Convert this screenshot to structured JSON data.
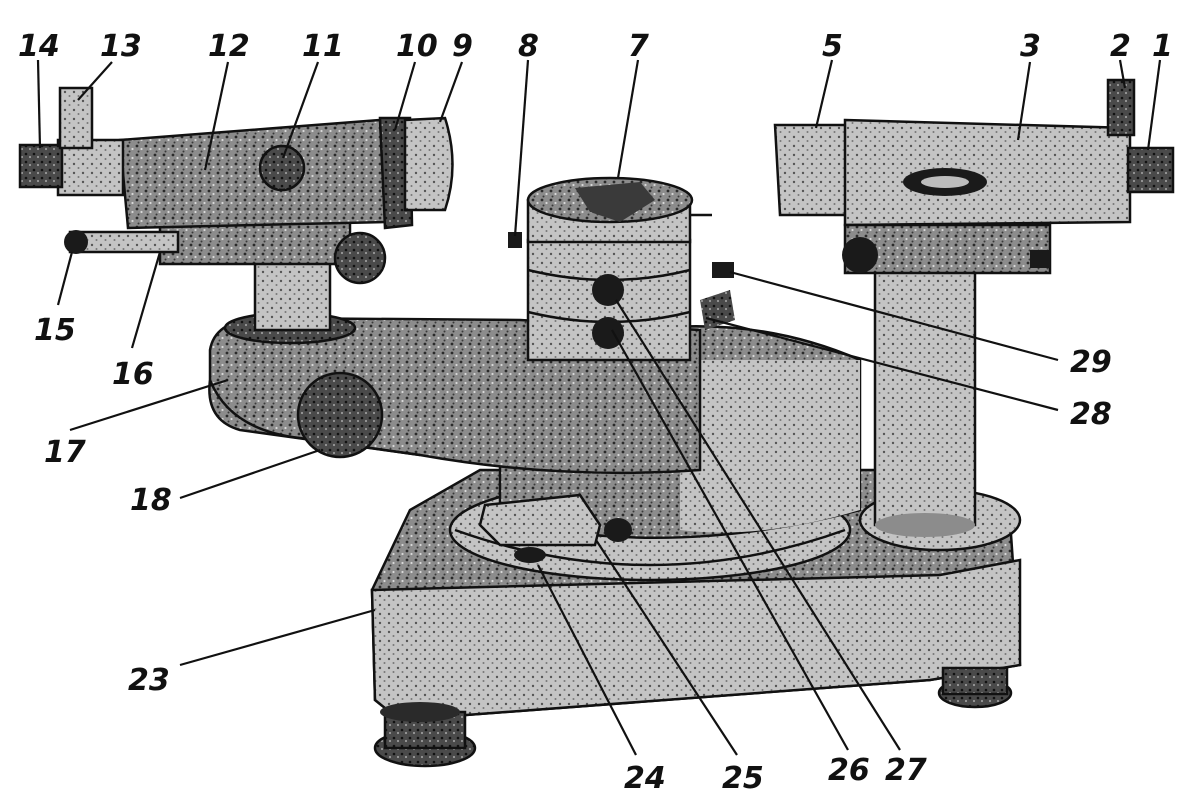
{
  "diagram": {
    "callouts": [
      {
        "id": "c14",
        "number": "14"
      },
      {
        "id": "c13",
        "number": "13"
      },
      {
        "id": "c12",
        "number": "12"
      },
      {
        "id": "c11",
        "number": "11"
      },
      {
        "id": "c10",
        "number": "10"
      },
      {
        "id": "c9",
        "number": "9"
      },
      {
        "id": "c8",
        "number": "8"
      },
      {
        "id": "c7",
        "number": "7"
      },
      {
        "id": "c5",
        "number": "5"
      },
      {
        "id": "c3",
        "number": "3"
      },
      {
        "id": "c2",
        "number": "2"
      },
      {
        "id": "c1",
        "number": "1"
      },
      {
        "id": "c15",
        "number": "15"
      },
      {
        "id": "c16",
        "number": "16"
      },
      {
        "id": "c17",
        "number": "17"
      },
      {
        "id": "c18",
        "number": "18"
      },
      {
        "id": "c29",
        "number": "29"
      },
      {
        "id": "c28",
        "number": "28"
      },
      {
        "id": "c23",
        "number": "23"
      },
      {
        "id": "c24",
        "number": "24"
      },
      {
        "id": "c25",
        "number": "25"
      },
      {
        "id": "c26",
        "number": "26"
      },
      {
        "id": "c27",
        "number": "27"
      }
    ]
  }
}
